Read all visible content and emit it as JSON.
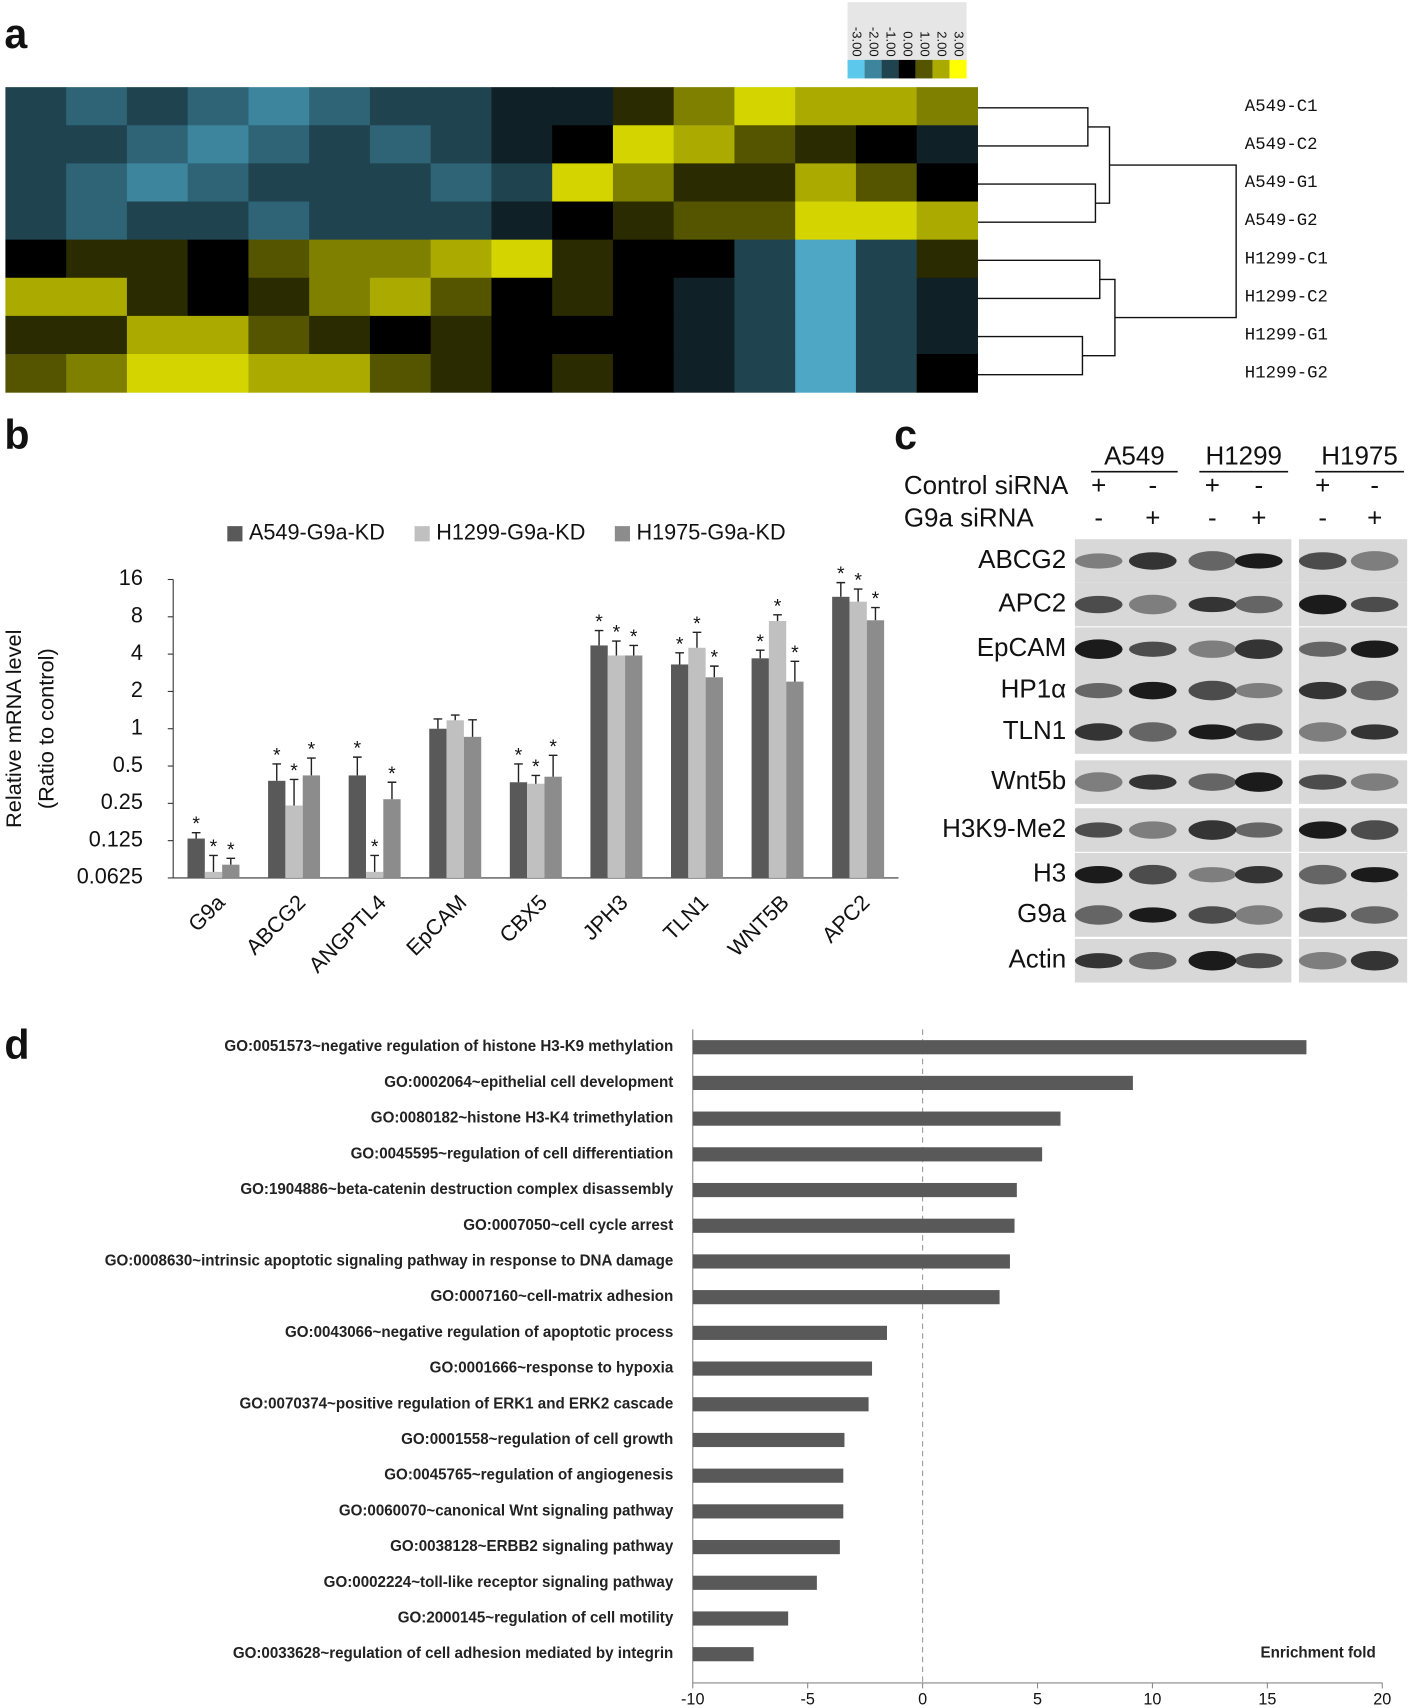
{
  "panel_labels": [
    "a",
    "b",
    "c",
    "d"
  ],
  "chart_data": [
    {
      "type": "heatmap",
      "rows": [
        "A549-C1",
        "A549-C2",
        "A549-G1",
        "A549-G2",
        "H1299-C1",
        "H1299-C2",
        "H1299-G1",
        "H1299-G2"
      ],
      "values": [
        [
          -1,
          -1.5,
          -1,
          -1.5,
          -2,
          -1.5,
          -1,
          -1,
          -0.5,
          -0.5,
          0.5,
          1.5,
          2.5,
          2,
          2,
          1.5
        ],
        [
          -1,
          -1,
          -1.5,
          -2,
          -1.5,
          -1,
          -1.5,
          -1,
          -0.5,
          0,
          2.5,
          2,
          1,
          0.5,
          0,
          -0.5
        ],
        [
          -1,
          -1.5,
          -2,
          -1.5,
          -1,
          -1,
          -1,
          -1.5,
          -1,
          2.5,
          1.5,
          0.5,
          0.5,
          2,
          1,
          0
        ],
        [
          -1,
          -1.5,
          -1,
          -1,
          -1.5,
          -1,
          -1,
          -1,
          -0.5,
          0,
          0.5,
          1,
          1,
          2.5,
          2.5,
          2
        ],
        [
          0,
          0.5,
          0.5,
          0,
          1,
          1.5,
          1.5,
          2,
          2.5,
          0.5,
          0,
          0,
          -1,
          -2.5,
          -1,
          0.5
        ],
        [
          2,
          2,
          0.5,
          0,
          0.5,
          1.5,
          2,
          1,
          0,
          0.5,
          0,
          -0.5,
          -1,
          -2.5,
          -1,
          -0.5
        ],
        [
          0.5,
          0.5,
          2,
          2,
          1,
          0.5,
          0,
          0.5,
          0,
          0,
          0,
          -0.5,
          -1,
          -2.5,
          -1,
          -0.5
        ],
        [
          1,
          1.5,
          2.5,
          2.5,
          2,
          2,
          1,
          0.5,
          0,
          0.5,
          0,
          -0.5,
          -1,
          -2.5,
          -1,
          0
        ]
      ],
      "colorbar_ticks": [
        {
          "value": -3,
          "label": "-3.00"
        },
        {
          "value": -2,
          "label": "-2.00"
        },
        {
          "value": -1,
          "label": "-1.00"
        },
        {
          "value": 0,
          "label": "0.00"
        },
        {
          "value": 1,
          "label": "1.00"
        },
        {
          "value": 2,
          "label": "2.00"
        },
        {
          "value": 3,
          "label": "3.00"
        }
      ],
      "colors": [
        "#5cc8ec",
        "#000000",
        "#ffff00"
      ]
    },
    {
      "type": "bar",
      "ylabel": [
        "Relative mRNA level",
        "(Ratio to control)"
      ],
      "categories": [
        "G9a",
        "ABCG2",
        "ANGPTL4",
        "EpCAM",
        "CBX5",
        "JPH3",
        "TLN1",
        "WNT5B",
        "APC2"
      ],
      "series": [
        {
          "name": "A549-G9a-KD",
          "color": "#595959",
          "values": [
            0.13,
            0.38,
            0.42,
            1.0,
            0.37,
            4.7,
            3.3,
            3.7,
            11.6
          ],
          "errors": [
            0.015,
            0.14,
            0.17,
            0.2,
            0.15,
            1.5,
            0.8,
            0.6,
            3.5
          ],
          "significance": [
            "*",
            "*",
            "*",
            null,
            "*",
            "*",
            "*",
            "*",
            "*"
          ]
        },
        {
          "name": "H1299-G9a-KD",
          "color": "#c0c0c0",
          "values": [
            0.07,
            0.24,
            0.07,
            1.17,
            0.36,
            3.9,
            4.5,
            7.4,
            10.6
          ],
          "errors": [
            0.025,
            0.15,
            0.025,
            0.12,
            0.06,
            1.2,
            1.5,
            0.9,
            2.8
          ],
          "significance": [
            "*",
            "*",
            "*",
            null,
            "*",
            "*",
            "*",
            "*",
            "*"
          ]
        },
        {
          "name": "H1975-G9a-KD",
          "color": "#8c8c8c",
          "values": [
            0.08,
            0.42,
            0.27,
            0.86,
            0.41,
            3.9,
            2.6,
            2.4,
            7.5
          ],
          "errors": [
            0.01,
            0.16,
            0.1,
            0.32,
            0.2,
            0.8,
            0.6,
            1.1,
            2
          ],
          "significance": [
            "*",
            "*",
            "*",
            null,
            "*",
            "*",
            "*",
            "*",
            "*"
          ]
        }
      ],
      "log_scale": true,
      "ylim": [
        0.0625,
        16
      ],
      "yticks": [
        0.0625,
        0.125,
        0.25,
        0.5,
        1,
        2,
        4,
        8,
        16
      ]
    },
    {
      "type": "hbar",
      "categories": [
        "GO:0051573~negative regulation of histone H3-K9 methylation",
        "GO:0002064~epithelial cell development",
        "GO:0080182~histone H3-K4 trimethylation",
        "GO:0045595~regulation of cell differentiation",
        "GO:1904886~beta-catenin destruction complex disassembly",
        "GO:0007050~cell cycle arrest",
        "GO:0008630~intrinsic apoptotic signaling pathway in response to DNA damage",
        "GO:0007160~cell-matrix adhesion",
        "GO:0043066~negative regulation of apoptotic process",
        "GO:0001666~response to hypoxia",
        "GO:0070374~positive regulation of ERK1 and ERK2 cascade",
        "GO:0001558~regulation of cell growth",
        "GO:0045765~regulation of angiogenesis",
        "GO:0060070~canonical Wnt signaling pathway",
        "GO:0038128~ERBB2 signaling pathway",
        "GO:0002224~toll-like receptor signaling pathway",
        "GO:2000145~regulation of cell motility",
        "GO:0033628~regulation of cell adhesion mediated by integrin"
      ],
      "values": [
        16.7,
        9.15,
        6.0,
        5.2,
        4.1,
        4.0,
        3.8,
        3.35,
        -1.55,
        -2.2,
        -2.35,
        -3.4,
        -3.45,
        -3.45,
        -3.6,
        -4.6,
        -5.85,
        -7.35
      ],
      "color": "#595959",
      "xlabel": "Enrichment fold",
      "xlim": [
        -10,
        20
      ],
      "xticks": [
        -10,
        -5,
        0,
        5,
        10,
        15,
        20
      ]
    }
  ],
  "blot": {
    "cell_lines": [
      "A549",
      "H1299",
      "H1975"
    ],
    "treatments": [
      {
        "label": "Control siRNA",
        "signs": [
          "+",
          "-",
          "+",
          "-",
          "+",
          "-"
        ]
      },
      {
        "label": "G9a siRNA",
        "signs": [
          "-",
          "+",
          "-",
          "+",
          "-",
          "+"
        ]
      }
    ],
    "proteins": [
      "ABCG2",
      "APC2",
      "EpCAM",
      "HP1α",
      "TLN1",
      "Wnt5b",
      "H3K9-Me2",
      "H3",
      "G9a",
      "Actin"
    ]
  }
}
